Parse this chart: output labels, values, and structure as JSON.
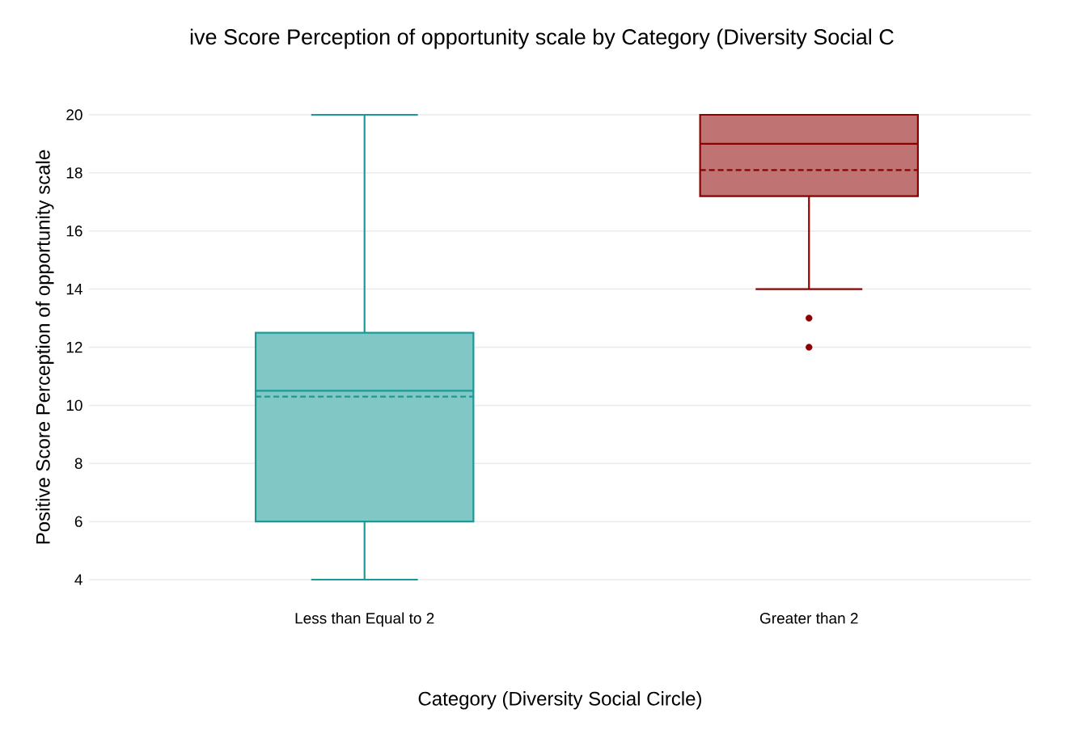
{
  "chart_data": {
    "type": "box",
    "title": "ive Score Perception of opportunity scale by Category (Diversity Social C",
    "xlabel": "Category (Diversity Social Circle)",
    "ylabel": "Positive Score Perception of opportunity scale",
    "categories": [
      "Less than Equal to 2",
      "Greater than 2"
    ],
    "boxes": [
      {
        "low": 4,
        "q1": 6,
        "median": 10.5,
        "q3": 12.5,
        "high": 20,
        "mean": 10.3
      },
      {
        "low": 14,
        "q1": 17.2,
        "median": 19,
        "q3": 20,
        "high": 20,
        "mean": 18.1,
        "outliers": [
          13,
          12
        ]
      }
    ],
    "colors": [
      "#1a9a96",
      "#8b0000"
    ],
    "ylim": [
      4,
      20
    ],
    "yticks": [
      4,
      6,
      8,
      10,
      12,
      14,
      16,
      18,
      20
    ],
    "grid": "y"
  }
}
